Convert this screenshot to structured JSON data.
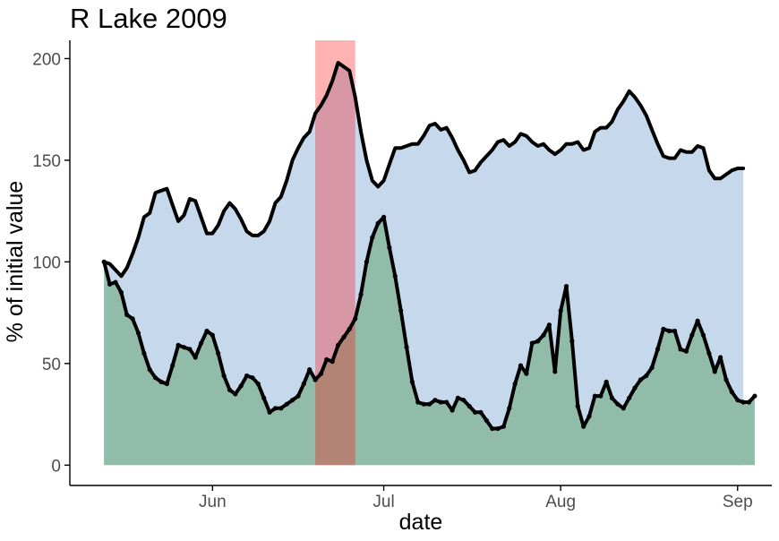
{
  "chart_data": {
    "type": "area",
    "title": "R Lake 2009",
    "xlabel": "date",
    "ylabel": "% of initial value",
    "xlim": [
      "2009-05-07",
      "2009-09-07"
    ],
    "ylim": [
      -10,
      209
    ],
    "x_ticks": [
      {
        "date": "2009-06-01",
        "label": "Jun"
      },
      {
        "date": "2009-07-01",
        "label": "Jul"
      },
      {
        "date": "2009-08-01",
        "label": "Aug"
      },
      {
        "date": "2009-09-01",
        "label": "Sep"
      }
    ],
    "y_ticks": [
      0,
      50,
      100,
      150,
      200
    ],
    "grid": false,
    "legend": "none",
    "highlight": {
      "start": "2009-06-19",
      "end": "2009-06-26",
      "color": "#ff0000",
      "opacity": 0.3
    },
    "series": [
      {
        "fill": "#c6d8ec",
        "line": "#000000",
        "markers": false,
        "points": [
          [
            "2009-05-13",
            100
          ],
          [
            "2009-05-14",
            99
          ],
          [
            "2009-05-15",
            96
          ],
          [
            "2009-05-16",
            93
          ],
          [
            "2009-05-17",
            97
          ],
          [
            "2009-05-18",
            104
          ],
          [
            "2009-05-19",
            112
          ],
          [
            "2009-05-20",
            122
          ],
          [
            "2009-05-21",
            124
          ],
          [
            "2009-05-22",
            134
          ],
          [
            "2009-05-23",
            135
          ],
          [
            "2009-05-24",
            136
          ],
          [
            "2009-05-25",
            128
          ],
          [
            "2009-05-26",
            120
          ],
          [
            "2009-05-27",
            123
          ],
          [
            "2009-05-28",
            131
          ],
          [
            "2009-05-29",
            130
          ],
          [
            "2009-05-30",
            122
          ],
          [
            "2009-05-31",
            114
          ],
          [
            "2009-06-01",
            114
          ],
          [
            "2009-06-02",
            118
          ],
          [
            "2009-06-03",
            125
          ],
          [
            "2009-06-04",
            129
          ],
          [
            "2009-06-05",
            126
          ],
          [
            "2009-06-06",
            121
          ],
          [
            "2009-06-07",
            115
          ],
          [
            "2009-06-08",
            113
          ],
          [
            "2009-06-09",
            113
          ],
          [
            "2009-06-10",
            115
          ],
          [
            "2009-06-11",
            120
          ],
          [
            "2009-06-12",
            129
          ],
          [
            "2009-06-13",
            132
          ],
          [
            "2009-06-14",
            140
          ],
          [
            "2009-06-15",
            150
          ],
          [
            "2009-06-16",
            156
          ],
          [
            "2009-06-17",
            161
          ],
          [
            "2009-06-18",
            164
          ],
          [
            "2009-06-19",
            173
          ],
          [
            "2009-06-20",
            177
          ],
          [
            "2009-06-21",
            182
          ],
          [
            "2009-06-22",
            189
          ],
          [
            "2009-06-23",
            198
          ],
          [
            "2009-06-24",
            196
          ],
          [
            "2009-06-25",
            194
          ],
          [
            "2009-06-26",
            181
          ],
          [
            "2009-06-27",
            164
          ],
          [
            "2009-06-28",
            150
          ],
          [
            "2009-06-29",
            140
          ],
          [
            "2009-06-30",
            137
          ],
          [
            "2009-07-01",
            140
          ],
          [
            "2009-07-02",
            148
          ],
          [
            "2009-07-03",
            156
          ],
          [
            "2009-07-04",
            156
          ],
          [
            "2009-07-05",
            157
          ],
          [
            "2009-07-06",
            158
          ],
          [
            "2009-07-07",
            158
          ],
          [
            "2009-07-08",
            162
          ],
          [
            "2009-07-09",
            167
          ],
          [
            "2009-07-10",
            168
          ],
          [
            "2009-07-11",
            165
          ],
          [
            "2009-07-12",
            166
          ],
          [
            "2009-07-13",
            161
          ],
          [
            "2009-07-14",
            155
          ],
          [
            "2009-07-15",
            150
          ],
          [
            "2009-07-16",
            144
          ],
          [
            "2009-07-17",
            145
          ],
          [
            "2009-07-18",
            149
          ],
          [
            "2009-07-19",
            152
          ],
          [
            "2009-07-20",
            155
          ],
          [
            "2009-07-21",
            159
          ],
          [
            "2009-07-22",
            160
          ],
          [
            "2009-07-23",
            157
          ],
          [
            "2009-07-24",
            159
          ],
          [
            "2009-07-25",
            163
          ],
          [
            "2009-07-26",
            162
          ],
          [
            "2009-07-27",
            159
          ],
          [
            "2009-07-28",
            157
          ],
          [
            "2009-07-29",
            158
          ],
          [
            "2009-07-30",
            155
          ],
          [
            "2009-07-31",
            153
          ],
          [
            "2009-08-01",
            155
          ],
          [
            "2009-08-02",
            158
          ],
          [
            "2009-08-03",
            158
          ],
          [
            "2009-08-04",
            159
          ],
          [
            "2009-08-05",
            155
          ],
          [
            "2009-08-06",
            156
          ],
          [
            "2009-08-07",
            164
          ],
          [
            "2009-08-08",
            166
          ],
          [
            "2009-08-09",
            166
          ],
          [
            "2009-08-10",
            169
          ],
          [
            "2009-08-11",
            175
          ],
          [
            "2009-08-12",
            179
          ],
          [
            "2009-08-13",
            184
          ],
          [
            "2009-08-14",
            181
          ],
          [
            "2009-08-15",
            177
          ],
          [
            "2009-08-16",
            172
          ],
          [
            "2009-08-17",
            165
          ],
          [
            "2009-08-18",
            158
          ],
          [
            "2009-08-19",
            152
          ],
          [
            "2009-08-20",
            151
          ],
          [
            "2009-08-21",
            151
          ],
          [
            "2009-08-22",
            155
          ],
          [
            "2009-08-23",
            154
          ],
          [
            "2009-08-24",
            154
          ],
          [
            "2009-08-25",
            157
          ],
          [
            "2009-08-26",
            156
          ],
          [
            "2009-08-27",
            145
          ],
          [
            "2009-08-28",
            141
          ],
          [
            "2009-08-29",
            141
          ],
          [
            "2009-08-30",
            143
          ],
          [
            "2009-08-31",
            145
          ],
          [
            "2009-09-01",
            146
          ],
          [
            "2009-09-02",
            146
          ]
        ]
      },
      {
        "fill": "#92bcaa",
        "line": "#000000",
        "markers": true,
        "points": [
          [
            "2009-05-13",
            100
          ],
          [
            "2009-05-14",
            89
          ],
          [
            "2009-05-15",
            90
          ],
          [
            "2009-05-16",
            85
          ],
          [
            "2009-05-17",
            74
          ],
          [
            "2009-05-18",
            72
          ],
          [
            "2009-05-19",
            65
          ],
          [
            "2009-05-20",
            55
          ],
          [
            "2009-05-21",
            47
          ],
          [
            "2009-05-22",
            43
          ],
          [
            "2009-05-23",
            41
          ],
          [
            "2009-05-24",
            40
          ],
          [
            "2009-05-25",
            49
          ],
          [
            "2009-05-26",
            59
          ],
          [
            "2009-05-27",
            58
          ],
          [
            "2009-05-28",
            57
          ],
          [
            "2009-05-29",
            53
          ],
          [
            "2009-05-30",
            60
          ],
          [
            "2009-05-31",
            66
          ],
          [
            "2009-06-01",
            64
          ],
          [
            "2009-06-02",
            55
          ],
          [
            "2009-06-03",
            44
          ],
          [
            "2009-06-04",
            37
          ],
          [
            "2009-06-05",
            35
          ],
          [
            "2009-06-06",
            39
          ],
          [
            "2009-06-07",
            44
          ],
          [
            "2009-06-08",
            43
          ],
          [
            "2009-06-09",
            40
          ],
          [
            "2009-06-10",
            33
          ],
          [
            "2009-06-11",
            26
          ],
          [
            "2009-06-12",
            28
          ],
          [
            "2009-06-13",
            28
          ],
          [
            "2009-06-14",
            30
          ],
          [
            "2009-06-15",
            32
          ],
          [
            "2009-06-16",
            34
          ],
          [
            "2009-06-17",
            40
          ],
          [
            "2009-06-18",
            47
          ],
          [
            "2009-06-19",
            42
          ],
          [
            "2009-06-20",
            45
          ],
          [
            "2009-06-21",
            52
          ],
          [
            "2009-06-22",
            51
          ],
          [
            "2009-06-23",
            59
          ],
          [
            "2009-06-24",
            63
          ],
          [
            "2009-06-25",
            67
          ],
          [
            "2009-06-26",
            72
          ],
          [
            "2009-06-27",
            84
          ],
          [
            "2009-06-28",
            100
          ],
          [
            "2009-06-29",
            112
          ],
          [
            "2009-06-30",
            119
          ],
          [
            "2009-07-01",
            122
          ],
          [
            "2009-07-02",
            107
          ],
          [
            "2009-07-03",
            93
          ],
          [
            "2009-07-04",
            76
          ],
          [
            "2009-07-05",
            58
          ],
          [
            "2009-07-06",
            41
          ],
          [
            "2009-07-07",
            31
          ],
          [
            "2009-07-08",
            30
          ],
          [
            "2009-07-09",
            30
          ],
          [
            "2009-07-10",
            32
          ],
          [
            "2009-07-11",
            31
          ],
          [
            "2009-07-12",
            31
          ],
          [
            "2009-07-13",
            27
          ],
          [
            "2009-07-14",
            33
          ],
          [
            "2009-07-15",
            32
          ],
          [
            "2009-07-16",
            29
          ],
          [
            "2009-07-17",
            26
          ],
          [
            "2009-07-18",
            26
          ],
          [
            "2009-07-19",
            22
          ],
          [
            "2009-07-20",
            18
          ],
          [
            "2009-07-21",
            18
          ],
          [
            "2009-07-22",
            19
          ],
          [
            "2009-07-23",
            28
          ],
          [
            "2009-07-24",
            40
          ],
          [
            "2009-07-25",
            49
          ],
          [
            "2009-07-26",
            45
          ],
          [
            "2009-07-27",
            60
          ],
          [
            "2009-07-28",
            61
          ],
          [
            "2009-07-29",
            64
          ],
          [
            "2009-07-30",
            69
          ],
          [
            "2009-07-31",
            46
          ],
          [
            "2009-08-01",
            76
          ],
          [
            "2009-08-02",
            88
          ],
          [
            "2009-08-03",
            61
          ],
          [
            "2009-08-04",
            29
          ],
          [
            "2009-08-05",
            19
          ],
          [
            "2009-08-06",
            24
          ],
          [
            "2009-08-07",
            34
          ],
          [
            "2009-08-08",
            34
          ],
          [
            "2009-08-09",
            41
          ],
          [
            "2009-08-10",
            33
          ],
          [
            "2009-08-11",
            30
          ],
          [
            "2009-08-12",
            28
          ],
          [
            "2009-08-13",
            33
          ],
          [
            "2009-08-14",
            38
          ],
          [
            "2009-08-15",
            42
          ],
          [
            "2009-08-16",
            44
          ],
          [
            "2009-08-17",
            48
          ],
          [
            "2009-08-18",
            57
          ],
          [
            "2009-08-19",
            67
          ],
          [
            "2009-08-20",
            66
          ],
          [
            "2009-08-21",
            66
          ],
          [
            "2009-08-22",
            57
          ],
          [
            "2009-08-23",
            56
          ],
          [
            "2009-08-24",
            64
          ],
          [
            "2009-08-25",
            71
          ],
          [
            "2009-08-26",
            64
          ],
          [
            "2009-08-27",
            55
          ],
          [
            "2009-08-28",
            46
          ],
          [
            "2009-08-29",
            53
          ],
          [
            "2009-08-30",
            42
          ],
          [
            "2009-08-31",
            36
          ],
          [
            "2009-09-01",
            32
          ],
          [
            "2009-09-02",
            31
          ],
          [
            "2009-09-03",
            31
          ],
          [
            "2009-09-04",
            34
          ]
        ]
      }
    ]
  }
}
